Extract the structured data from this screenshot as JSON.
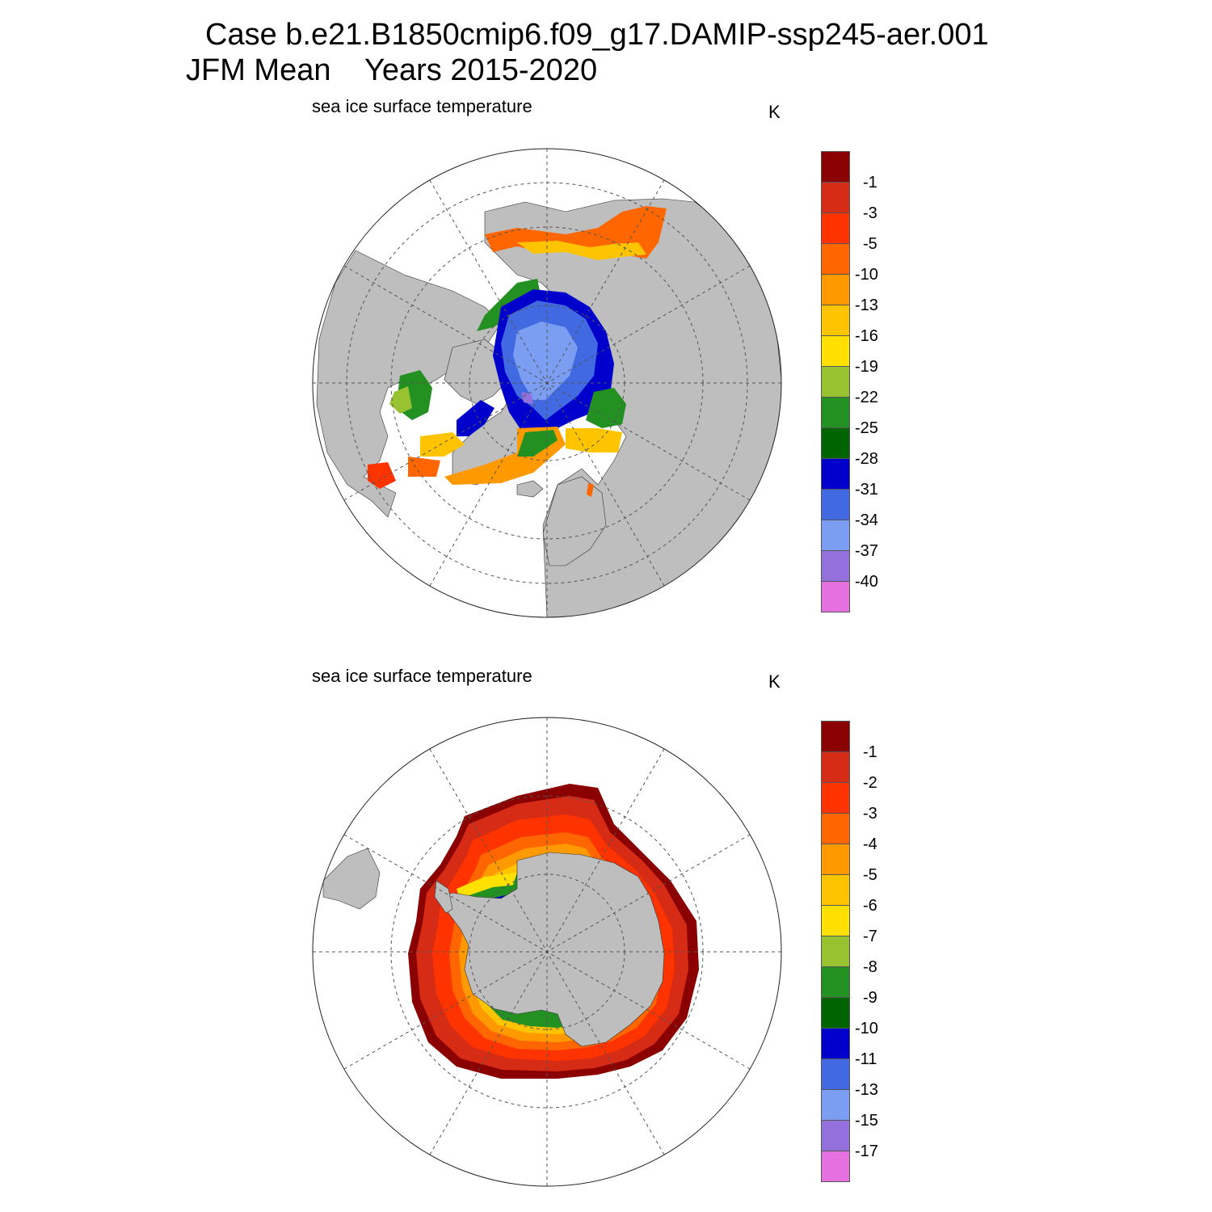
{
  "header": {
    "line1": "Case b.e21.B1850cmip6.f09_g17.DAMIP-ssp245-aer.001",
    "line2": "JFM Mean    Years 2015-2020"
  },
  "colors": {
    "land": "#bebebe",
    "ocean": "#ffffff",
    "grid": "#555555"
  },
  "panels": [
    {
      "id": "nh",
      "title": "sea ice surface temperature",
      "units": "K",
      "labels": [
        "-1",
        "-3",
        "-5",
        "-10",
        "-13",
        "-16",
        "-19",
        "-22",
        "-25",
        "-28",
        "-31",
        "-34",
        "-37",
        "-40"
      ]
    },
    {
      "id": "sh",
      "title": "sea ice surface temperature",
      "units": "K",
      "labels": [
        "-1",
        "-2",
        "-3",
        "-4",
        "-5",
        "-6",
        "-7",
        "-8",
        "-9",
        "-10",
        "-11",
        "-13",
        "-15",
        "-17"
      ]
    }
  ],
  "colorbar_colors": [
    "#8b0000",
    "#d62b15",
    "#ff3300",
    "#ff6600",
    "#ff9900",
    "#ffc400",
    "#ffe000",
    "#99c230",
    "#229122",
    "#006400",
    "#0000cd",
    "#4169e1",
    "#7b9ef2",
    "#9370db",
    "#e570e0"
  ]
}
